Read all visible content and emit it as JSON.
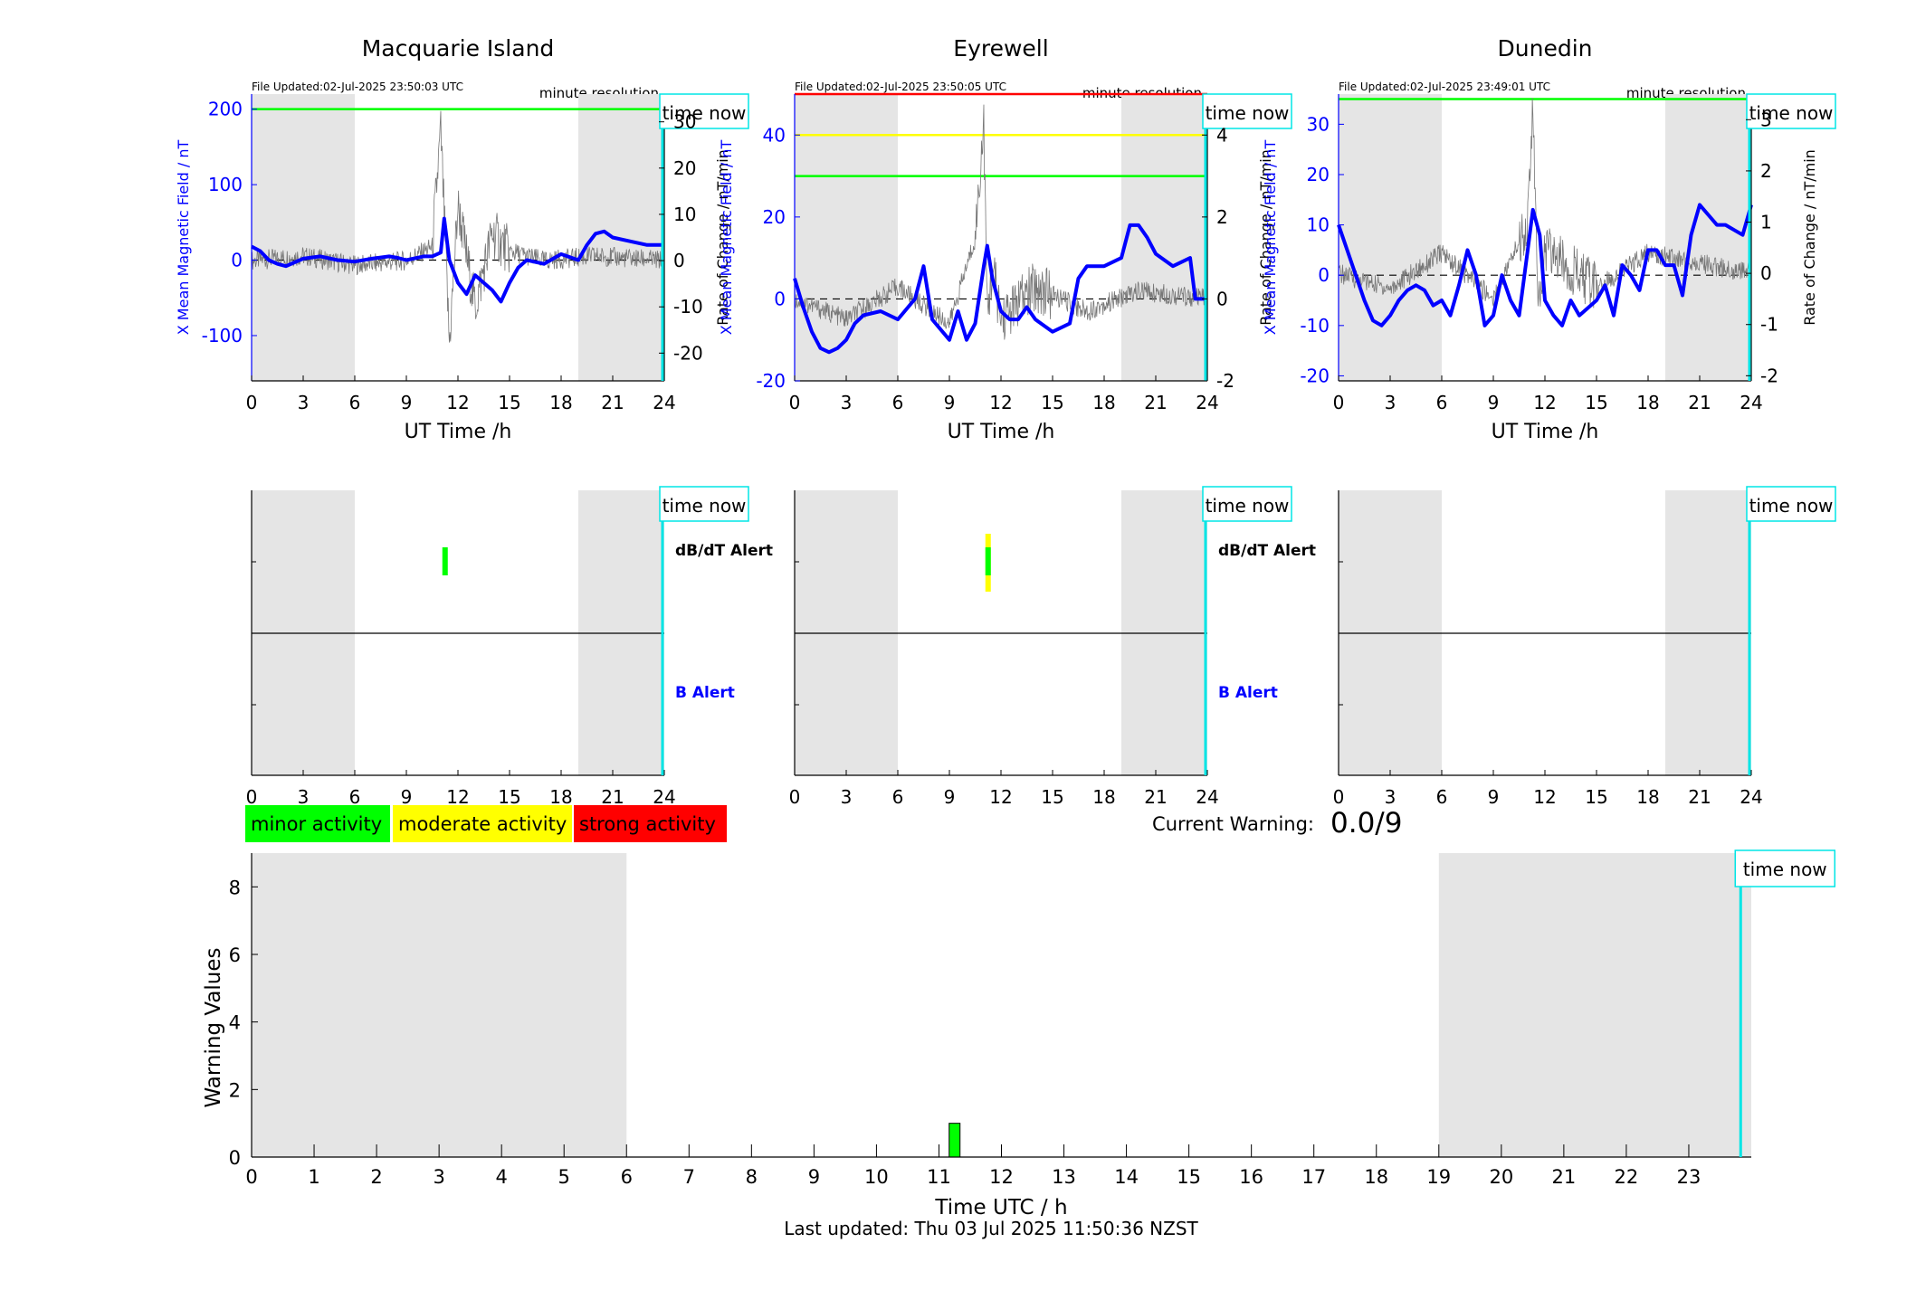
{
  "stations": [
    {
      "title": "Macquarie Island",
      "file_updated": "File Updated:02-Jul-2025 23:50:03 UTC",
      "resolution": "minute resolution",
      "xlabel": "UT Time /h",
      "ylabel_left": "X Mean Magnetic Field / nT",
      "ylabel_right": "Rate of Change / nT/min",
      "left_ticks": [
        "-100",
        "0",
        "100",
        "200"
      ],
      "right_ticks": [
        "-20",
        "-10",
        "0",
        "10",
        "20",
        "30"
      ],
      "alert_markers": {
        "dbdt": "minor",
        "b": "none"
      },
      "labels": {
        "dbdt": "dB/dT Alert",
        "b": "B Alert",
        "time_now": "time now"
      }
    },
    {
      "title": "Eyrewell",
      "file_updated": "File Updated:02-Jul-2025 23:50:05 UTC",
      "resolution": "minute resolution",
      "xlabel": "UT Time /h",
      "ylabel_left": "X Mean Magnetic Field / nT",
      "ylabel_right": "Rate of Change / nT/min",
      "left_ticks": [
        "-20",
        "0",
        "20",
        "40"
      ],
      "right_ticks": [
        "-2",
        "0",
        "2",
        "4"
      ],
      "alert_markers": {
        "dbdt": "moderate",
        "b": "none"
      },
      "labels": {
        "dbdt": "dB/dT Alert",
        "b": "B Alert",
        "time_now": "time now"
      }
    },
    {
      "title": "Dunedin",
      "file_updated": "File Updated:02-Jul-2025 23:49:01 UTC",
      "resolution": "minute resolution",
      "xlabel": "UT Time /h",
      "ylabel_left": "X Mean Magnetic Field / nT",
      "ylabel_right": "Rate of Change / nT/min",
      "left_ticks": [
        "-20",
        "-10",
        "0",
        "10",
        "20",
        "30"
      ],
      "right_ticks": [
        "-2",
        "-1",
        "0",
        "1",
        "2",
        "3"
      ],
      "alert_markers": {
        "dbdt": "none",
        "b": "none"
      },
      "labels": {
        "dbdt": "",
        "b": "",
        "time_now": "time now"
      }
    }
  ],
  "hour_ticks_small": [
    "0",
    "3",
    "6",
    "9",
    "12",
    "15",
    "18",
    "21",
    "24"
  ],
  "legend": [
    {
      "label": "minor activity",
      "color": "#00ff00"
    },
    {
      "label": "moderate activity",
      "color": "#ffff00"
    },
    {
      "label": "strong activity",
      "color": "#ff0000"
    }
  ],
  "current_warning": {
    "label": "Current Warning:",
    "value": "0.0/9"
  },
  "colors": {
    "field": "#0000ff",
    "now_line": "#00e5e5",
    "night_shade": "#e5e5e5",
    "threshold_green": "#00ff00",
    "threshold_yellow": "#ffff00",
    "threshold_red": "#ff0000"
  },
  "chart_data": [
    {
      "type": "line",
      "title": "Macquarie Island",
      "xlabel": "UT Time /h",
      "ylabel": "X Mean Magnetic Field / nT",
      "y2label": "Rate of Change / nT/min",
      "xlim": [
        0,
        24
      ],
      "ylim": [
        -160,
        220
      ],
      "y2lim": [
        -26,
        36
      ],
      "thresholds": [
        {
          "value": 200,
          "color": "green"
        }
      ],
      "series": [
        {
          "name": "X Mean Magnetic Field / nT",
          "x": [
            0,
            0.5,
            1,
            1.5,
            2,
            2.5,
            3,
            4,
            5,
            6,
            7,
            8,
            8.5,
            9,
            10,
            10.5,
            11,
            11.2,
            11.5,
            12,
            12.5,
            13,
            13.5,
            14,
            14.5,
            15,
            15.5,
            16,
            17,
            18,
            19,
            19.5,
            20,
            20.5,
            21,
            22,
            23,
            24
          ],
          "values": [
            18,
            12,
            0,
            -5,
            -8,
            -3,
            2,
            5,
            0,
            -2,
            2,
            5,
            3,
            0,
            5,
            5,
            10,
            55,
            0,
            -30,
            -45,
            -20,
            -30,
            -40,
            -55,
            -30,
            -10,
            0,
            -5,
            8,
            0,
            20,
            35,
            38,
            30,
            25,
            20,
            20
          ]
        },
        {
          "name": "Rate of Change / nT/min",
          "x": [
            0,
            3,
            6,
            9,
            10.5,
            11,
            11.5,
            12,
            13,
            14,
            15,
            17,
            20,
            24
          ],
          "values": [
            0,
            1,
            -1,
            0,
            3,
            28,
            -18,
            12,
            -10,
            6,
            2,
            0,
            1,
            0
          ]
        }
      ]
    },
    {
      "type": "line",
      "title": "Eyrewell",
      "xlabel": "UT Time /h",
      "ylabel": "X Mean Magnetic Field / nT",
      "y2label": "Rate of Change / nT/min",
      "xlim": [
        0,
        24
      ],
      "ylim": [
        -20,
        50
      ],
      "y2lim": [
        -2,
        5
      ],
      "thresholds": [
        {
          "value": 30,
          "color": "green"
        },
        {
          "value": 40,
          "color": "yellow"
        },
        {
          "value": 50,
          "color": "red"
        }
      ],
      "series": [
        {
          "name": "X Mean Magnetic Field / nT",
          "x": [
            0,
            0.5,
            1,
            1.5,
            2,
            2.5,
            3,
            3.5,
            4,
            5,
            6,
            7,
            7.5,
            8,
            9,
            9.5,
            10,
            10.5,
            11,
            11.2,
            11.5,
            12,
            12.5,
            13,
            13.5,
            14,
            15,
            16,
            16.5,
            17,
            18,
            19,
            19.5,
            20,
            20.5,
            21,
            22,
            23,
            23.3,
            24
          ],
          "values": [
            5,
            -2,
            -8,
            -12,
            -13,
            -12,
            -10,
            -6,
            -4,
            -3,
            -5,
            0,
            8,
            -5,
            -10,
            -3,
            -10,
            -6,
            8,
            13,
            5,
            -3,
            -5,
            -5,
            -2,
            -5,
            -8,
            -6,
            5,
            8,
            8,
            10,
            18,
            18,
            15,
            11,
            8,
            10,
            0,
            0
          ]
        },
        {
          "name": "Rate of Change / nT/min",
          "x": [
            0,
            3,
            6,
            9,
            10.5,
            11,
            11.2,
            11.5,
            12,
            14,
            17,
            20,
            24
          ],
          "values": [
            0,
            -0.5,
            0.3,
            -0.6,
            1.5,
            4.3,
            -0.4,
            0.8,
            -0.5,
            0.3,
            -0.3,
            0.2,
            0
          ]
        }
      ]
    },
    {
      "type": "line",
      "title": "Dunedin",
      "xlabel": "UT Time /h",
      "ylabel": "X Mean Magnetic Field / nT",
      "y2label": "Rate of Change / nT/min",
      "xlim": [
        0,
        24
      ],
      "ylim": [
        -21,
        36
      ],
      "y2lim": [
        -2.1,
        3.5
      ],
      "thresholds": [
        {
          "value": 35,
          "color": "green"
        }
      ],
      "series": [
        {
          "name": "X Mean Magnetic Field / nT",
          "x": [
            0,
            0.5,
            1,
            1.5,
            2,
            2.5,
            3,
            3.5,
            4,
            4.5,
            5,
            5.5,
            6,
            6.5,
            7,
            7.5,
            8,
            8.5,
            9,
            9.5,
            10,
            10.5,
            11,
            11.3,
            11.7,
            12,
            12.5,
            13,
            13.5,
            14,
            15,
            15.5,
            16,
            16.5,
            17,
            17.5,
            18,
            18.5,
            19,
            19.5,
            20,
            20.5,
            21,
            21.5,
            22,
            22.5,
            23,
            23.5,
            24
          ],
          "values": [
            10,
            5,
            0,
            -5,
            -9,
            -10,
            -8,
            -5,
            -3,
            -2,
            -3,
            -6,
            -5,
            -8,
            -2,
            5,
            0,
            -10,
            -8,
            0,
            -5,
            -8,
            5,
            13,
            8,
            -5,
            -8,
            -10,
            -5,
            -8,
            -5,
            -2,
            -8,
            2,
            0,
            -3,
            5,
            5,
            2,
            2,
            -4,
            8,
            14,
            12,
            10,
            10,
            9,
            8,
            14
          ]
        },
        {
          "name": "Rate of Change / nT/min",
          "x": [
            0,
            3,
            6,
            9,
            11,
            11.3,
            11.6,
            12,
            15,
            18,
            21,
            24
          ],
          "values": [
            0,
            -0.3,
            0.4,
            -0.5,
            1,
            3.3,
            -0.8,
            0.5,
            -0.3,
            0.4,
            0.2,
            0
          ]
        }
      ]
    },
    {
      "type": "bar",
      "title": "",
      "xlabel": "Time UTC / h",
      "ylabel": "Warning Values",
      "xlim": [
        0,
        24
      ],
      "ylim": [
        0,
        9
      ],
      "x_ticks": [
        "0",
        "1",
        "2",
        "3",
        "4",
        "5",
        "6",
        "7",
        "8",
        "9",
        "10",
        "11",
        "12",
        "13",
        "14",
        "15",
        "16",
        "17",
        "18",
        "19",
        "20",
        "21",
        "22",
        "23"
      ],
      "y_ticks": [
        "0",
        "2",
        "4",
        "6",
        "8"
      ],
      "night_shading": [
        [
          0,
          6
        ],
        [
          19,
          24
        ]
      ],
      "now_time": 23.83,
      "now_label": "time now",
      "bars": [
        {
          "x": 11.25,
          "value": 1,
          "color": "green"
        }
      ],
      "footer": "Last updated: Thu 03 Jul 2025 11:50:36 NZST"
    }
  ]
}
